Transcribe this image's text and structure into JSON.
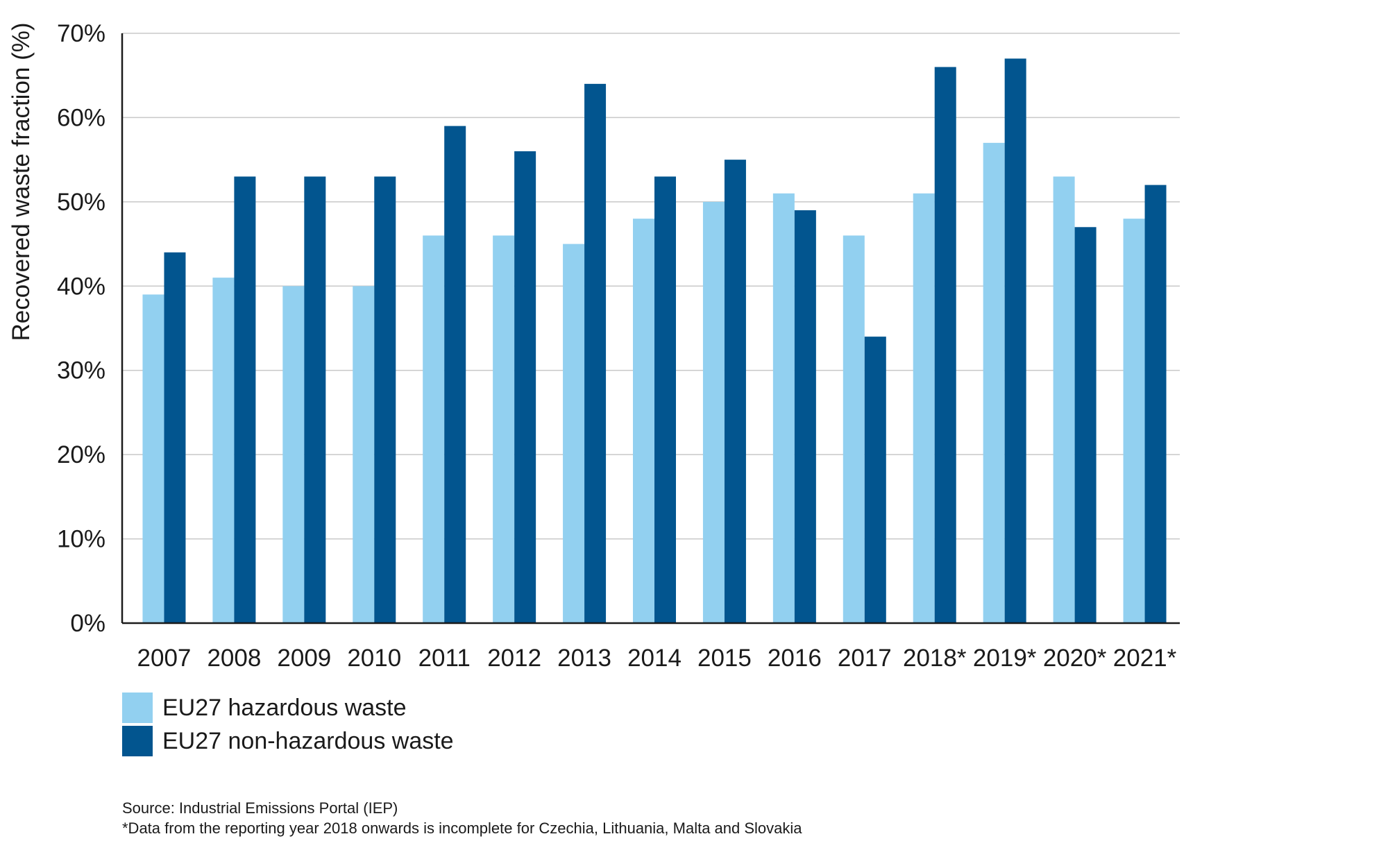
{
  "chart_data": {
    "type": "bar",
    "title": "",
    "xlabel": "",
    "ylabel": "Recovered waste fraction (%)",
    "ylim": [
      0,
      70
    ],
    "yticks": [
      "0%",
      "10%",
      "20%",
      "30%",
      "40%",
      "50%",
      "60%",
      "70%"
    ],
    "categories": [
      "2007",
      "2008",
      "2009",
      "2010",
      "2011",
      "2012",
      "2013",
      "2014",
      "2015",
      "2016",
      "2017",
      "2018*",
      "2019*",
      "2020*",
      "2021*"
    ],
    "series": [
      {
        "name": "EU27 hazardous waste",
        "color": "#92d0f0",
        "values": [
          39,
          41,
          40,
          40,
          46,
          46,
          45,
          48,
          50,
          51,
          46,
          51,
          57,
          53,
          48
        ]
      },
      {
        "name": "EU27 non-hazardous waste",
        "color": "#02558f",
        "values": [
          44,
          53,
          53,
          53,
          59,
          56,
          64,
          53,
          55,
          49,
          34,
          66,
          67,
          47,
          52
        ]
      }
    ],
    "grid": true,
    "legend_position": "bottom-left"
  },
  "footnotes": {
    "source": "Source: Industrial Emissions Portal (IEP)",
    "note": "*Data from the reporting year 2018 onwards is incomplete for Czechia, Lithuania, Malta and Slovakia"
  }
}
